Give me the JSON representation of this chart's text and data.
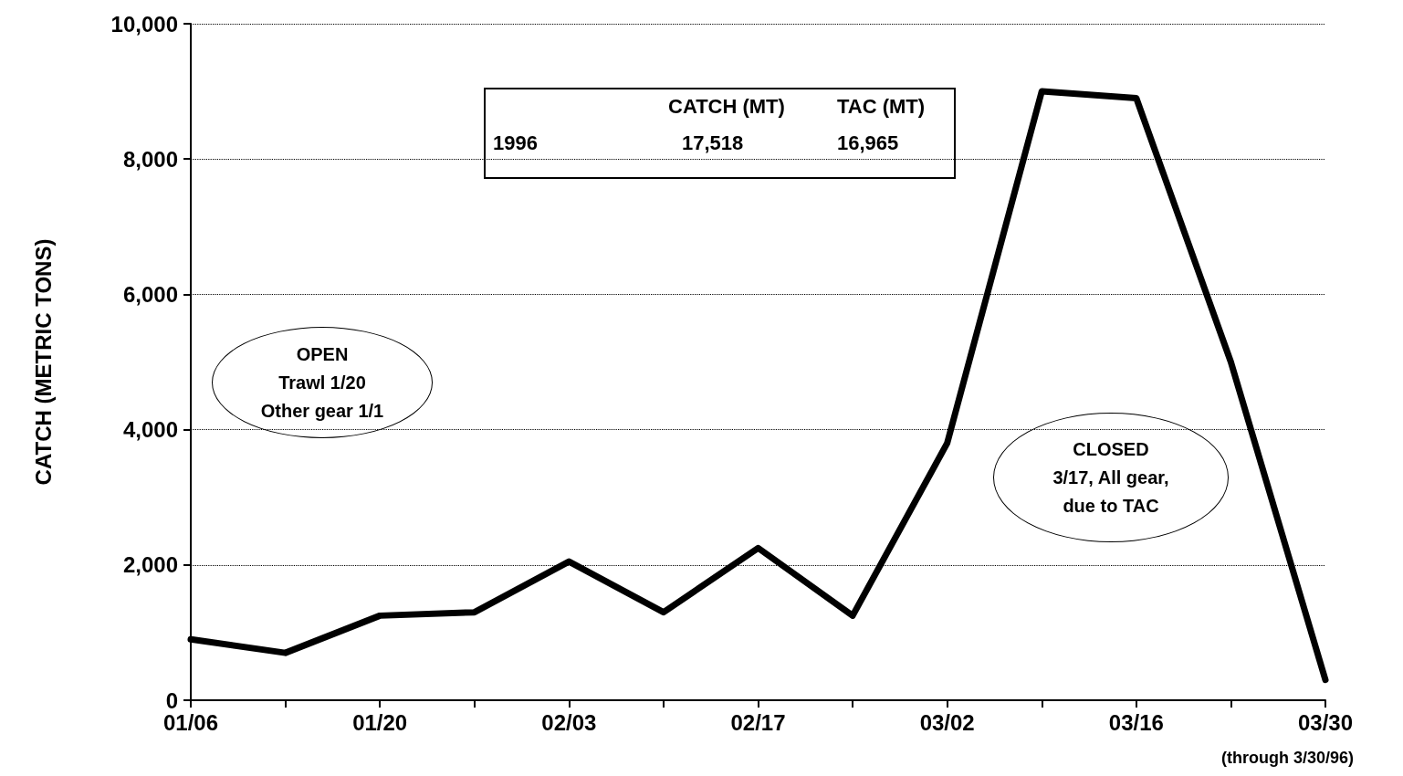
{
  "chart_data": {
    "type": "line",
    "ylabel": "CATCH (METRIC TONS)",
    "categories": [
      "01/06",
      null,
      "01/20",
      null,
      "02/03",
      null,
      "02/17",
      null,
      "03/02",
      null,
      "03/16",
      null,
      "03/30"
    ],
    "values": [
      900,
      700,
      1250,
      1300,
      2050,
      1300,
      2250,
      1250,
      3800,
      9000,
      8900,
      5000,
      300
    ],
    "color": "#000000",
    "ylim": [
      0,
      10000
    ],
    "yticks": [
      0,
      {
        "value": 2000,
        "label": "2,000"
      },
      {
        "value": 4000,
        "label": "4,000"
      },
      {
        "value": 6000,
        "label": "6,000"
      },
      {
        "value": 8000,
        "label": "8,000"
      },
      {
        "value": 10000,
        "label": "10,000"
      }
    ],
    "grid": "y",
    "marker": "none",
    "line_style": "solid",
    "annotations": [
      "CATCH (MT)",
      "TAC (MT)",
      "1996",
      "17,518",
      "16,965",
      "OPEN\nTrawl 1/20\nOther gear 1/1",
      "CLOSED\n3/17, All gear,\ndue to TAC",
      "(through 3/30/96)"
    ]
  }
}
